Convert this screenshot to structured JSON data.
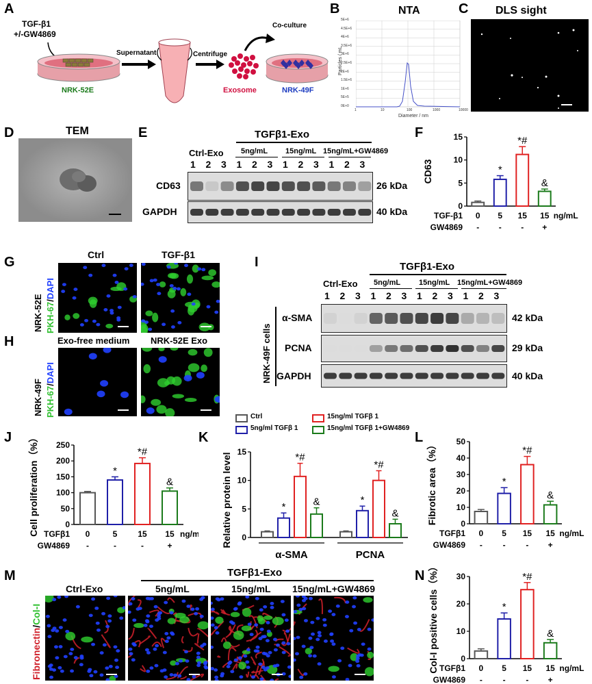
{
  "colors": {
    "ctrl": "#555555",
    "g5": "#1f1fa8",
    "g15": "#e02020",
    "gw": "#1a7a1a",
    "exosome": "#d01040",
    "nrk52e": "#1a7a1a",
    "nrk49f": "#1a3ac0",
    "fib_red": "#d0202a",
    "col_green": "#30d030",
    "dapi_blue": "#2040ff"
  },
  "panels": {
    "A": "A",
    "B": "B",
    "C": "C",
    "D": "D",
    "E": "E",
    "F": "F",
    "G": "G",
    "H": "H",
    "I": "I",
    "J": "J",
    "K": "K",
    "L": "L",
    "M": "M",
    "N": "N"
  },
  "panelA": {
    "treatment_line1": "TGF-β1",
    "treatment_line2": "+/-GW4869",
    "cell1": "NRK-52E",
    "supernatant": "Supernatant",
    "centrifuge": "Centrifuge",
    "exosome": "Exosome",
    "coculture": "Co-culture",
    "cell2": "NRK-49F"
  },
  "panelB": {
    "title": "NTA",
    "ylabel": "Particles / mL",
    "xlabel": "Diameter / nm",
    "yticks": [
      "0E+0",
      "5E+5",
      "1E+6",
      "1.5E+6",
      "2E+6",
      "2.5E+6",
      "3E+6",
      "3.5E+6",
      "4E+6",
      "4.5E+6",
      "5E+6"
    ],
    "xticks": [
      "1",
      "10",
      "100",
      "1000",
      "10000"
    ]
  },
  "panelC": {
    "title": "DLS sight"
  },
  "panelD": {
    "title": "TEM"
  },
  "panelE": {
    "group_header": "TGFβ1-Exo",
    "ctrl": "Ctrl-Exo",
    "g5": "5ng/mL",
    "g15": "15ng/mL",
    "gw": "15ng/mL+GW4869",
    "lanes": [
      "1",
      "2",
      "3",
      "1",
      "2",
      "3",
      "1",
      "2",
      "3",
      "1",
      "2",
      "3"
    ],
    "row1": "CD63",
    "row1_kda": "26 kDa",
    "row2": "GAPDH",
    "row2_kda": "40 kDa"
  },
  "panelG": {
    "ctrl": "Ctrl",
    "tgf": "TGF-β1",
    "cell": "NRK-52E",
    "stain_pkh": "PKH-67",
    "stain_sep": "/",
    "stain_dapi": "DAPI"
  },
  "panelH": {
    "left": "Exo-free medium",
    "right": "NRK-52E Exo",
    "cell": "NRK-49F",
    "stain_pkh": "PKH-67",
    "stain_sep": "/",
    "stain_dapi": "DAPI"
  },
  "panelI": {
    "group_header": "TGFβ1-Exo",
    "ctrl": "Ctrl-Exo",
    "g5": "5ng/mL",
    "g15": "15ng/mL",
    "gw": "15ng/mL+GW4869",
    "lanes": [
      "1",
      "2",
      "3",
      "1",
      "2",
      "3",
      "1",
      "2",
      "3",
      "1",
      "2",
      "3"
    ],
    "cells": "NRK-49F cells",
    "row1": "α-SMA",
    "row1_kda": "42 kDa",
    "row2": "PCNA",
    "row2_kda": "29 kDa",
    "row3": "GAPDH",
    "row3_kda": "40 kDa"
  },
  "panelK_legend": {
    "ctrl": "Ctrl",
    "g5": "5ng/ml TGFβ 1",
    "g15": "15ng/ml TGFβ 1",
    "gw": "15ng/ml TGFβ 1+GW4869"
  },
  "panelM": {
    "group_header": "TGFβ1-Exo",
    "ctrl": "Ctrl-Exo",
    "g5": "5ng/mL",
    "g15": "15ng/mL",
    "gw": "15ng/mL+GW4869",
    "stain_fib": "Fibronectin",
    "stain_sep": "/",
    "stain_col": "Col-I"
  },
  "chart_data": [
    {
      "id": "F",
      "type": "bar",
      "ylabel": "CD63",
      "ylim": [
        0,
        15
      ],
      "yticks": [
        0,
        5,
        10,
        15
      ],
      "categories": [
        "0",
        "5",
        "15",
        "15"
      ],
      "unit": "ng/mL",
      "row1_label": "TGF-β1",
      "row2_label": "GW4869",
      "row2": [
        "-",
        "-",
        "-",
        "+"
      ],
      "values": [
        0.8,
        5.8,
        11.2,
        3.2
      ],
      "errors": [
        0.3,
        0.8,
        1.7,
        0.5
      ],
      "annotations": [
        "",
        "*",
        "*#",
        "&"
      ]
    },
    {
      "id": "J",
      "type": "bar",
      "ylabel": "Cell proliferation（%）",
      "ylim": [
        0,
        250
      ],
      "yticks": [
        0,
        50,
        100,
        150,
        200,
        250
      ],
      "categories": [
        "0",
        "5",
        "15",
        "15"
      ],
      "unit": "ng/mL",
      "row1_label": "TGFβ1",
      "row2_label": "GW4869",
      "row2": [
        "-",
        "-",
        "-",
        "+"
      ],
      "values": [
        100,
        140,
        192,
        105
      ],
      "errors": [
        4,
        10,
        18,
        10
      ],
      "annotations": [
        "",
        "*",
        "*#",
        "&"
      ]
    },
    {
      "id": "K",
      "type": "bar",
      "ylabel": "Relative protein level",
      "ylim": [
        0,
        15
      ],
      "yticks": [
        0,
        5,
        10,
        15
      ],
      "categories": [
        "α-SMA",
        "PCNA"
      ],
      "series": [
        {
          "name": "Ctrl",
          "values": [
            1.0,
            1.0
          ],
          "errors": [
            0.15,
            0.15
          ]
        },
        {
          "name": "5ng/ml TGFβ 1",
          "values": [
            3.4,
            4.7
          ],
          "errors": [
            0.9,
            0.8
          ]
        },
        {
          "name": "15ng/ml TGFβ 1",
          "values": [
            10.7,
            10.0
          ],
          "errors": [
            2.3,
            1.7
          ]
        },
        {
          "name": "15ng/ml TGFβ 1+GW4869",
          "values": [
            4.1,
            2.4
          ],
          "errors": [
            1.1,
            0.8
          ]
        }
      ],
      "annotations": [
        [
          "",
          "*",
          "*#",
          "&"
        ],
        [
          "",
          "*",
          "*#",
          "&"
        ]
      ]
    },
    {
      "id": "L",
      "type": "bar",
      "ylabel": "Fibrotic area（%）",
      "ylim": [
        0,
        50
      ],
      "yticks": [
        0,
        10,
        20,
        30,
        40,
        50
      ],
      "categories": [
        "0",
        "5",
        "15",
        "15"
      ],
      "unit": "ng/mL",
      "row1_label": "TGFβ1",
      "row2_label": "GW4869",
      "row2": [
        "-",
        "-",
        "-",
        "+"
      ],
      "values": [
        7.5,
        18.5,
        36,
        11.5
      ],
      "errors": [
        1.2,
        3.5,
        5,
        2.2
      ],
      "annotations": [
        "",
        "*",
        "*#",
        "&"
      ]
    },
    {
      "id": "N",
      "type": "bar",
      "ylabel": "Col-I positive cells（%）",
      "ylim": [
        0,
        30
      ],
      "yticks": [
        0,
        10,
        20,
        30
      ],
      "categories": [
        "0",
        "5",
        "15",
        "15"
      ],
      "unit": "ng/mL",
      "row1_label": "TGFβ1",
      "row2_label": "GW4869",
      "row2": [
        "-",
        "-",
        "-",
        "+"
      ],
      "values": [
        2.8,
        14.5,
        25.2,
        5.8
      ],
      "errors": [
        0.8,
        2.2,
        2.6,
        1.2
      ],
      "annotations": [
        "",
        "*",
        "*#",
        "&"
      ]
    }
  ]
}
